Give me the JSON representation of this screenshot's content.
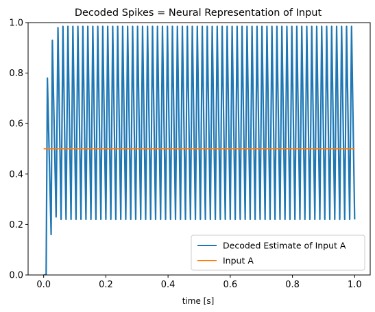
{
  "chart_data": {
    "type": "line",
    "title": "Decoded Spikes = Neural Representation of Input",
    "xlabel": "time [s]",
    "ylabel": "",
    "xlim": [
      -0.05,
      1.05
    ],
    "ylim": [
      0.0,
      1.0
    ],
    "x_ticks": [
      0.0,
      0.2,
      0.4,
      0.6,
      0.8,
      1.0
    ],
    "x_tick_labels": [
      "0.0",
      "0.2",
      "0.4",
      "0.6",
      "0.8",
      "1.0"
    ],
    "y_ticks": [
      0.0,
      0.2,
      0.4,
      0.6,
      0.8,
      1.0
    ],
    "y_tick_labels": [
      "0.0",
      "0.2",
      "0.4",
      "0.6",
      "0.8",
      "1.0"
    ],
    "grid": false,
    "legend_position": "lower-right",
    "series": [
      {
        "name": "Decoded Estimate of Input A",
        "color": "#1f77b4",
        "x": [
          0.0,
          0.008,
          0.012,
          0.024,
          0.028,
          0.04,
          0.046,
          0.056,
          0.062,
          0.072,
          0.078,
          0.088,
          0.094,
          0.104,
          0.11,
          0.12,
          0.126,
          0.136,
          0.142,
          0.152,
          0.158,
          0.168,
          0.174,
          0.184,
          0.19,
          0.2,
          0.206,
          0.216,
          0.222,
          0.232,
          0.238,
          0.248,
          0.254,
          0.264,
          0.27,
          0.28,
          0.286,
          0.296,
          0.302,
          0.312,
          0.318,
          0.328,
          0.334,
          0.344,
          0.35,
          0.36,
          0.366,
          0.376,
          0.382,
          0.392,
          0.398,
          0.408,
          0.414,
          0.424,
          0.43,
          0.44,
          0.446,
          0.456,
          0.462,
          0.472,
          0.478,
          0.488,
          0.494,
          0.504,
          0.51,
          0.52,
          0.526,
          0.536,
          0.542,
          0.552,
          0.558,
          0.568,
          0.574,
          0.584,
          0.59,
          0.6,
          0.606,
          0.616,
          0.622,
          0.632,
          0.638,
          0.648,
          0.654,
          0.664,
          0.67,
          0.68,
          0.686,
          0.696,
          0.702,
          0.712,
          0.718,
          0.728,
          0.734,
          0.744,
          0.75,
          0.76,
          0.766,
          0.776,
          0.782,
          0.792,
          0.798,
          0.808,
          0.814,
          0.824,
          0.83,
          0.84,
          0.846,
          0.856,
          0.862,
          0.872,
          0.878,
          0.888,
          0.894,
          0.904,
          0.91,
          0.92,
          0.926,
          0.936,
          0.942,
          0.952,
          0.958,
          0.968,
          0.974,
          0.984,
          0.99,
          1.0
        ],
        "y": [
          0.0,
          0.0,
          0.78,
          0.16,
          0.93,
          0.23,
          0.98,
          0.22,
          0.985,
          0.22,
          0.985,
          0.22,
          0.985,
          0.22,
          0.985,
          0.22,
          0.985,
          0.22,
          0.985,
          0.22,
          0.985,
          0.22,
          0.985,
          0.22,
          0.985,
          0.22,
          0.985,
          0.22,
          0.985,
          0.22,
          0.985,
          0.22,
          0.985,
          0.22,
          0.985,
          0.22,
          0.985,
          0.22,
          0.985,
          0.22,
          0.985,
          0.22,
          0.985,
          0.22,
          0.985,
          0.22,
          0.985,
          0.22,
          0.985,
          0.22,
          0.985,
          0.22,
          0.985,
          0.22,
          0.985,
          0.22,
          0.985,
          0.22,
          0.985,
          0.22,
          0.985,
          0.22,
          0.985,
          0.22,
          0.985,
          0.22,
          0.985,
          0.22,
          0.985,
          0.22,
          0.985,
          0.22,
          0.985,
          0.22,
          0.985,
          0.22,
          0.985,
          0.22,
          0.985,
          0.22,
          0.985,
          0.22,
          0.985,
          0.22,
          0.985,
          0.22,
          0.985,
          0.22,
          0.985,
          0.22,
          0.985,
          0.22,
          0.985,
          0.22,
          0.985,
          0.22,
          0.985,
          0.22,
          0.985,
          0.22,
          0.985,
          0.22,
          0.985,
          0.22,
          0.985,
          0.22,
          0.985,
          0.22,
          0.985,
          0.22,
          0.985,
          0.22,
          0.985,
          0.22,
          0.985,
          0.22,
          0.985,
          0.22,
          0.985,
          0.22,
          0.985,
          0.22,
          0.985,
          0.22,
          0.985,
          0.22
        ]
      },
      {
        "name": "Input A",
        "color": "#ff7f0e",
        "x": [
          0.0,
          1.0
        ],
        "y": [
          0.5,
          0.5
        ]
      }
    ]
  }
}
